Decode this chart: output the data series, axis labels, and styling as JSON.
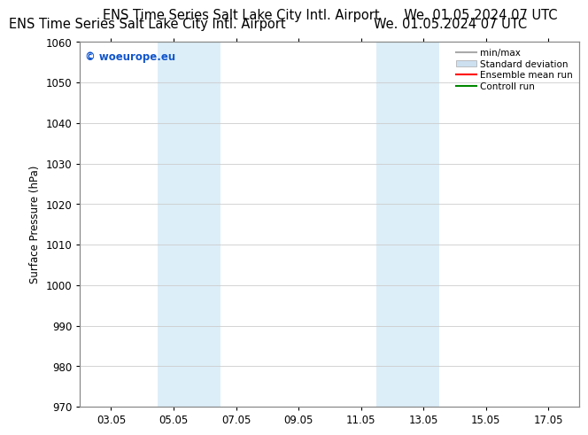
{
  "title_left": "ENS Time Series Salt Lake City Intl. Airport",
  "title_right": "We. 01.05.2024 07 UTC",
  "ylabel": "Surface Pressure (hPa)",
  "ylim": [
    970,
    1060
  ],
  "yticks": [
    970,
    980,
    990,
    1000,
    1010,
    1020,
    1030,
    1040,
    1050,
    1060
  ],
  "xlim": [
    1,
    17
  ],
  "xtick_labels": [
    "03.05",
    "05.05",
    "07.05",
    "09.05",
    "11.05",
    "13.05",
    "15.05",
    "17.05"
  ],
  "xtick_positions": [
    2,
    4,
    6,
    8,
    10,
    12,
    14,
    16
  ],
  "shaded_bands": [
    {
      "xmin": 3.5,
      "xmax": 5.5,
      "color": "#dceef8"
    },
    {
      "xmin": 10.5,
      "xmax": 12.5,
      "color": "#dceef8"
    }
  ],
  "watermark": "© woeurope.eu",
  "watermark_color": "#1155cc",
  "legend_items": [
    {
      "label": "min/max",
      "color": "#aaaaaa",
      "lw": 1.5
    },
    {
      "label": "Standard deviation",
      "color": "#cce0f0",
      "lw": 8
    },
    {
      "label": "Ensemble mean run",
      "color": "#ff0000",
      "lw": 1.5
    },
    {
      "label": "Controll run",
      "color": "#008800",
      "lw": 1.5
    }
  ],
  "bg_color": "#ffffff",
  "grid_color": "#cccccc",
  "title_fontsize": 10.5,
  "tick_fontsize": 8.5,
  "ylabel_fontsize": 8.5,
  "watermark_fontsize": 8.5,
  "legend_fontsize": 7.5
}
